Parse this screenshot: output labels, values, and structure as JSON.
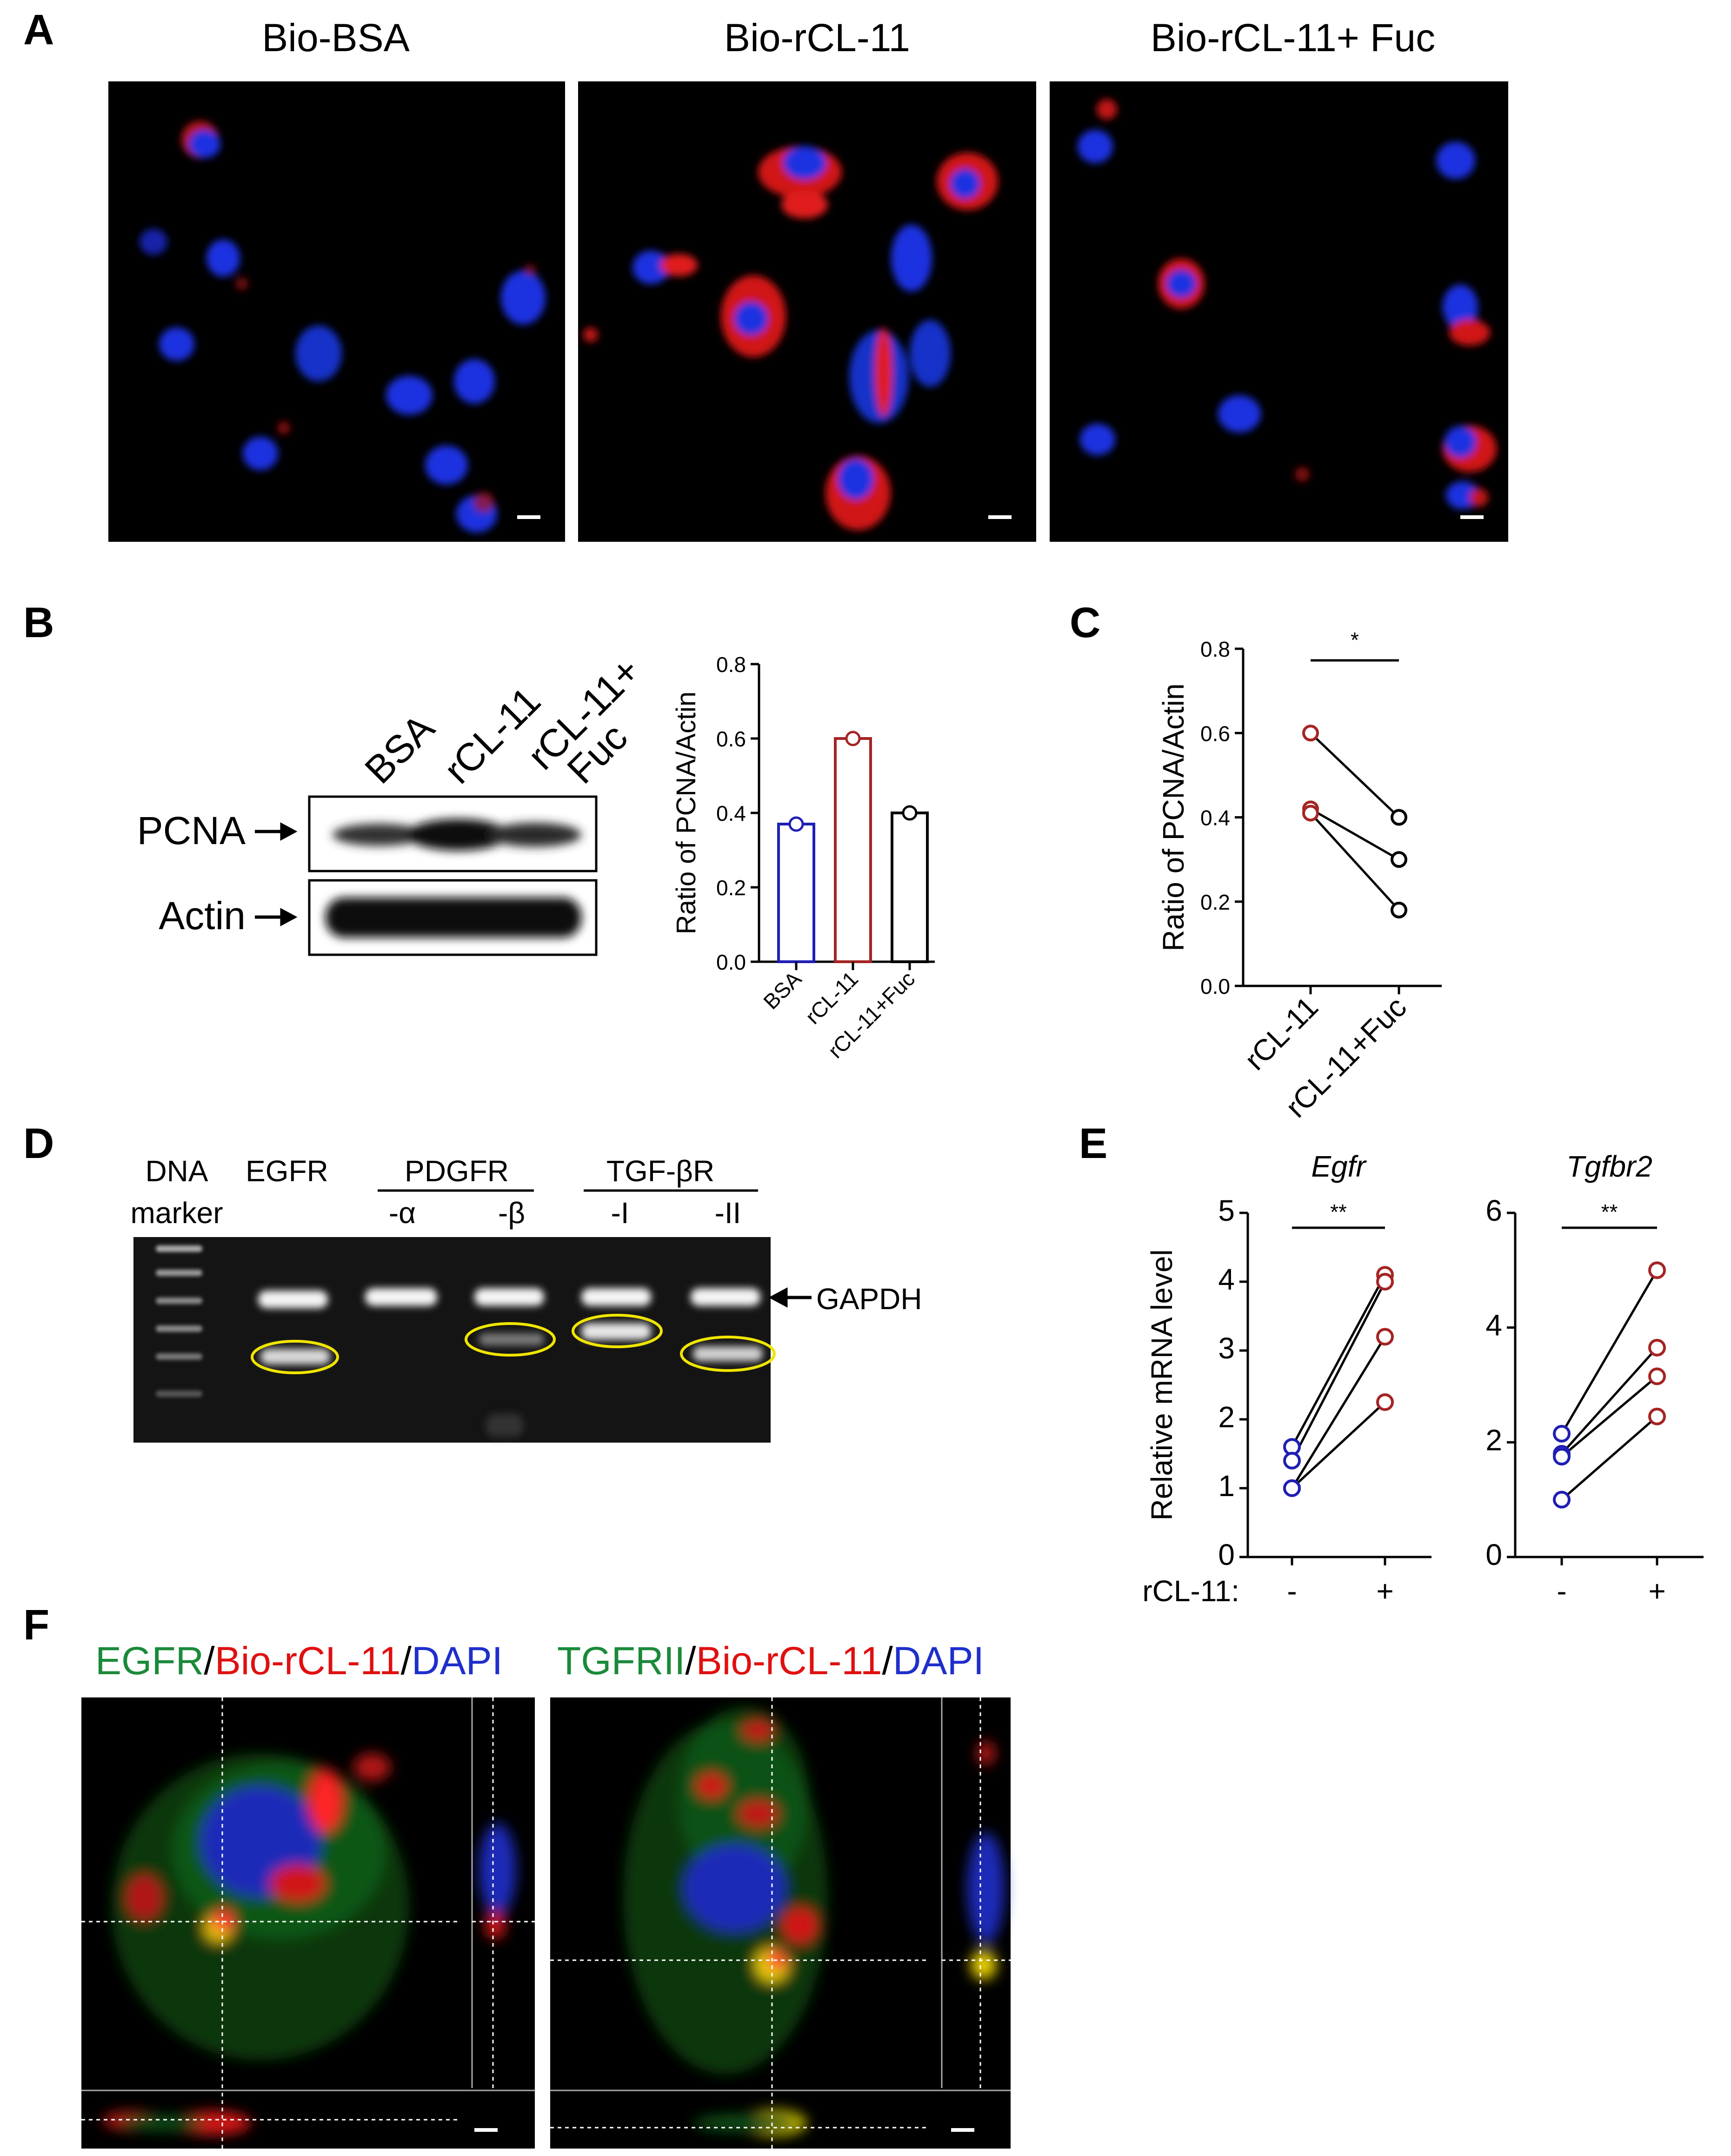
{
  "panelA": {
    "letter": "A",
    "titles": [
      "Bio-BSA",
      "Bio-rCL-11",
      "Bio-rCL-11+ Fuc"
    ]
  },
  "panelB": {
    "letter": "B",
    "lane_labels": [
      "BSA",
      "rCL-11",
      "rCL-11+",
      "Fuc"
    ],
    "row_labels": [
      "PCNA",
      "Actin"
    ],
    "colors": {
      "BSA": "#1f1fb4",
      "rCL-11": "#a52424",
      "rCL-11+Fuc": "#000000"
    }
  },
  "chart_b": {
    "type": "bar",
    "categories": [
      "BSA",
      "rCL-11",
      "rCL-11+Fuc"
    ],
    "values": [
      0.37,
      0.6,
      0.4
    ],
    "ylabel": "Ratio of PCNA/Actin",
    "ylim": [
      0,
      0.8
    ],
    "yticks": [
      "0.0",
      "0.2",
      "0.4",
      "0.6",
      "0.8"
    ]
  },
  "panelC": {
    "letter": "C"
  },
  "chart_c": {
    "type": "scatter",
    "categories": [
      "rCL-11",
      "rCL-11+Fuc"
    ],
    "pairs": [
      [
        0.6,
        0.4
      ],
      [
        0.42,
        0.3
      ],
      [
        0.41,
        0.18
      ]
    ],
    "ylabel": "Ratio of PCNA/Actin",
    "ylim": [
      0,
      0.8
    ],
    "yticks": [
      "0.0",
      "0.2",
      "0.4",
      "0.6",
      "0.8"
    ],
    "significance": "*"
  },
  "panelD": {
    "letter": "D",
    "marker_label_1": "DNA",
    "marker_label_2": "marker",
    "group_egfr": "EGFR",
    "group_pdgfr": "PDGFR",
    "group_tgf": "TGF-βR",
    "sub_labels": [
      "-α",
      "-β",
      "-I",
      "-II"
    ],
    "gapdh_label": "GAPDH"
  },
  "panelE": {
    "letter": "E",
    "ylabel": "Relative mRNA level",
    "xrow_label": "rCL-11:",
    "xtick_minus": "-",
    "xtick_plus": "+",
    "significance": "**"
  },
  "chart_e": [
    {
      "type": "scatter",
      "title": "Egfr",
      "ylim": [
        0,
        5
      ],
      "yticks": [
        "0",
        "1",
        "2",
        "3",
        "4",
        "5"
      ],
      "pairs": [
        [
          1.6,
          4.1
        ],
        [
          1.4,
          4.0
        ],
        [
          1.0,
          3.2
        ],
        [
          1.0,
          2.25
        ]
      ]
    },
    {
      "type": "scatter",
      "title": "Tgfbr2",
      "ylim": [
        0,
        6
      ],
      "yticks": [
        "0",
        "2",
        "4",
        "6"
      ],
      "pairs": [
        [
          2.15,
          5.0
        ],
        [
          1.8,
          3.65
        ],
        [
          1.75,
          3.15
        ],
        [
          1.0,
          2.45
        ]
      ]
    }
  ],
  "panelF": {
    "letter": "F",
    "left_title": [
      "EGFR",
      "/",
      "Bio-rCL-11",
      "/",
      "DAPI"
    ],
    "right_title": [
      "TGFRII",
      "/",
      "Bio-rCL-11",
      "/",
      "DAPI"
    ],
    "title_colors": {
      "green": "#1a8a3a",
      "red": "#e01010",
      "blue": "#1f2fcc",
      "black": "#000000"
    }
  }
}
